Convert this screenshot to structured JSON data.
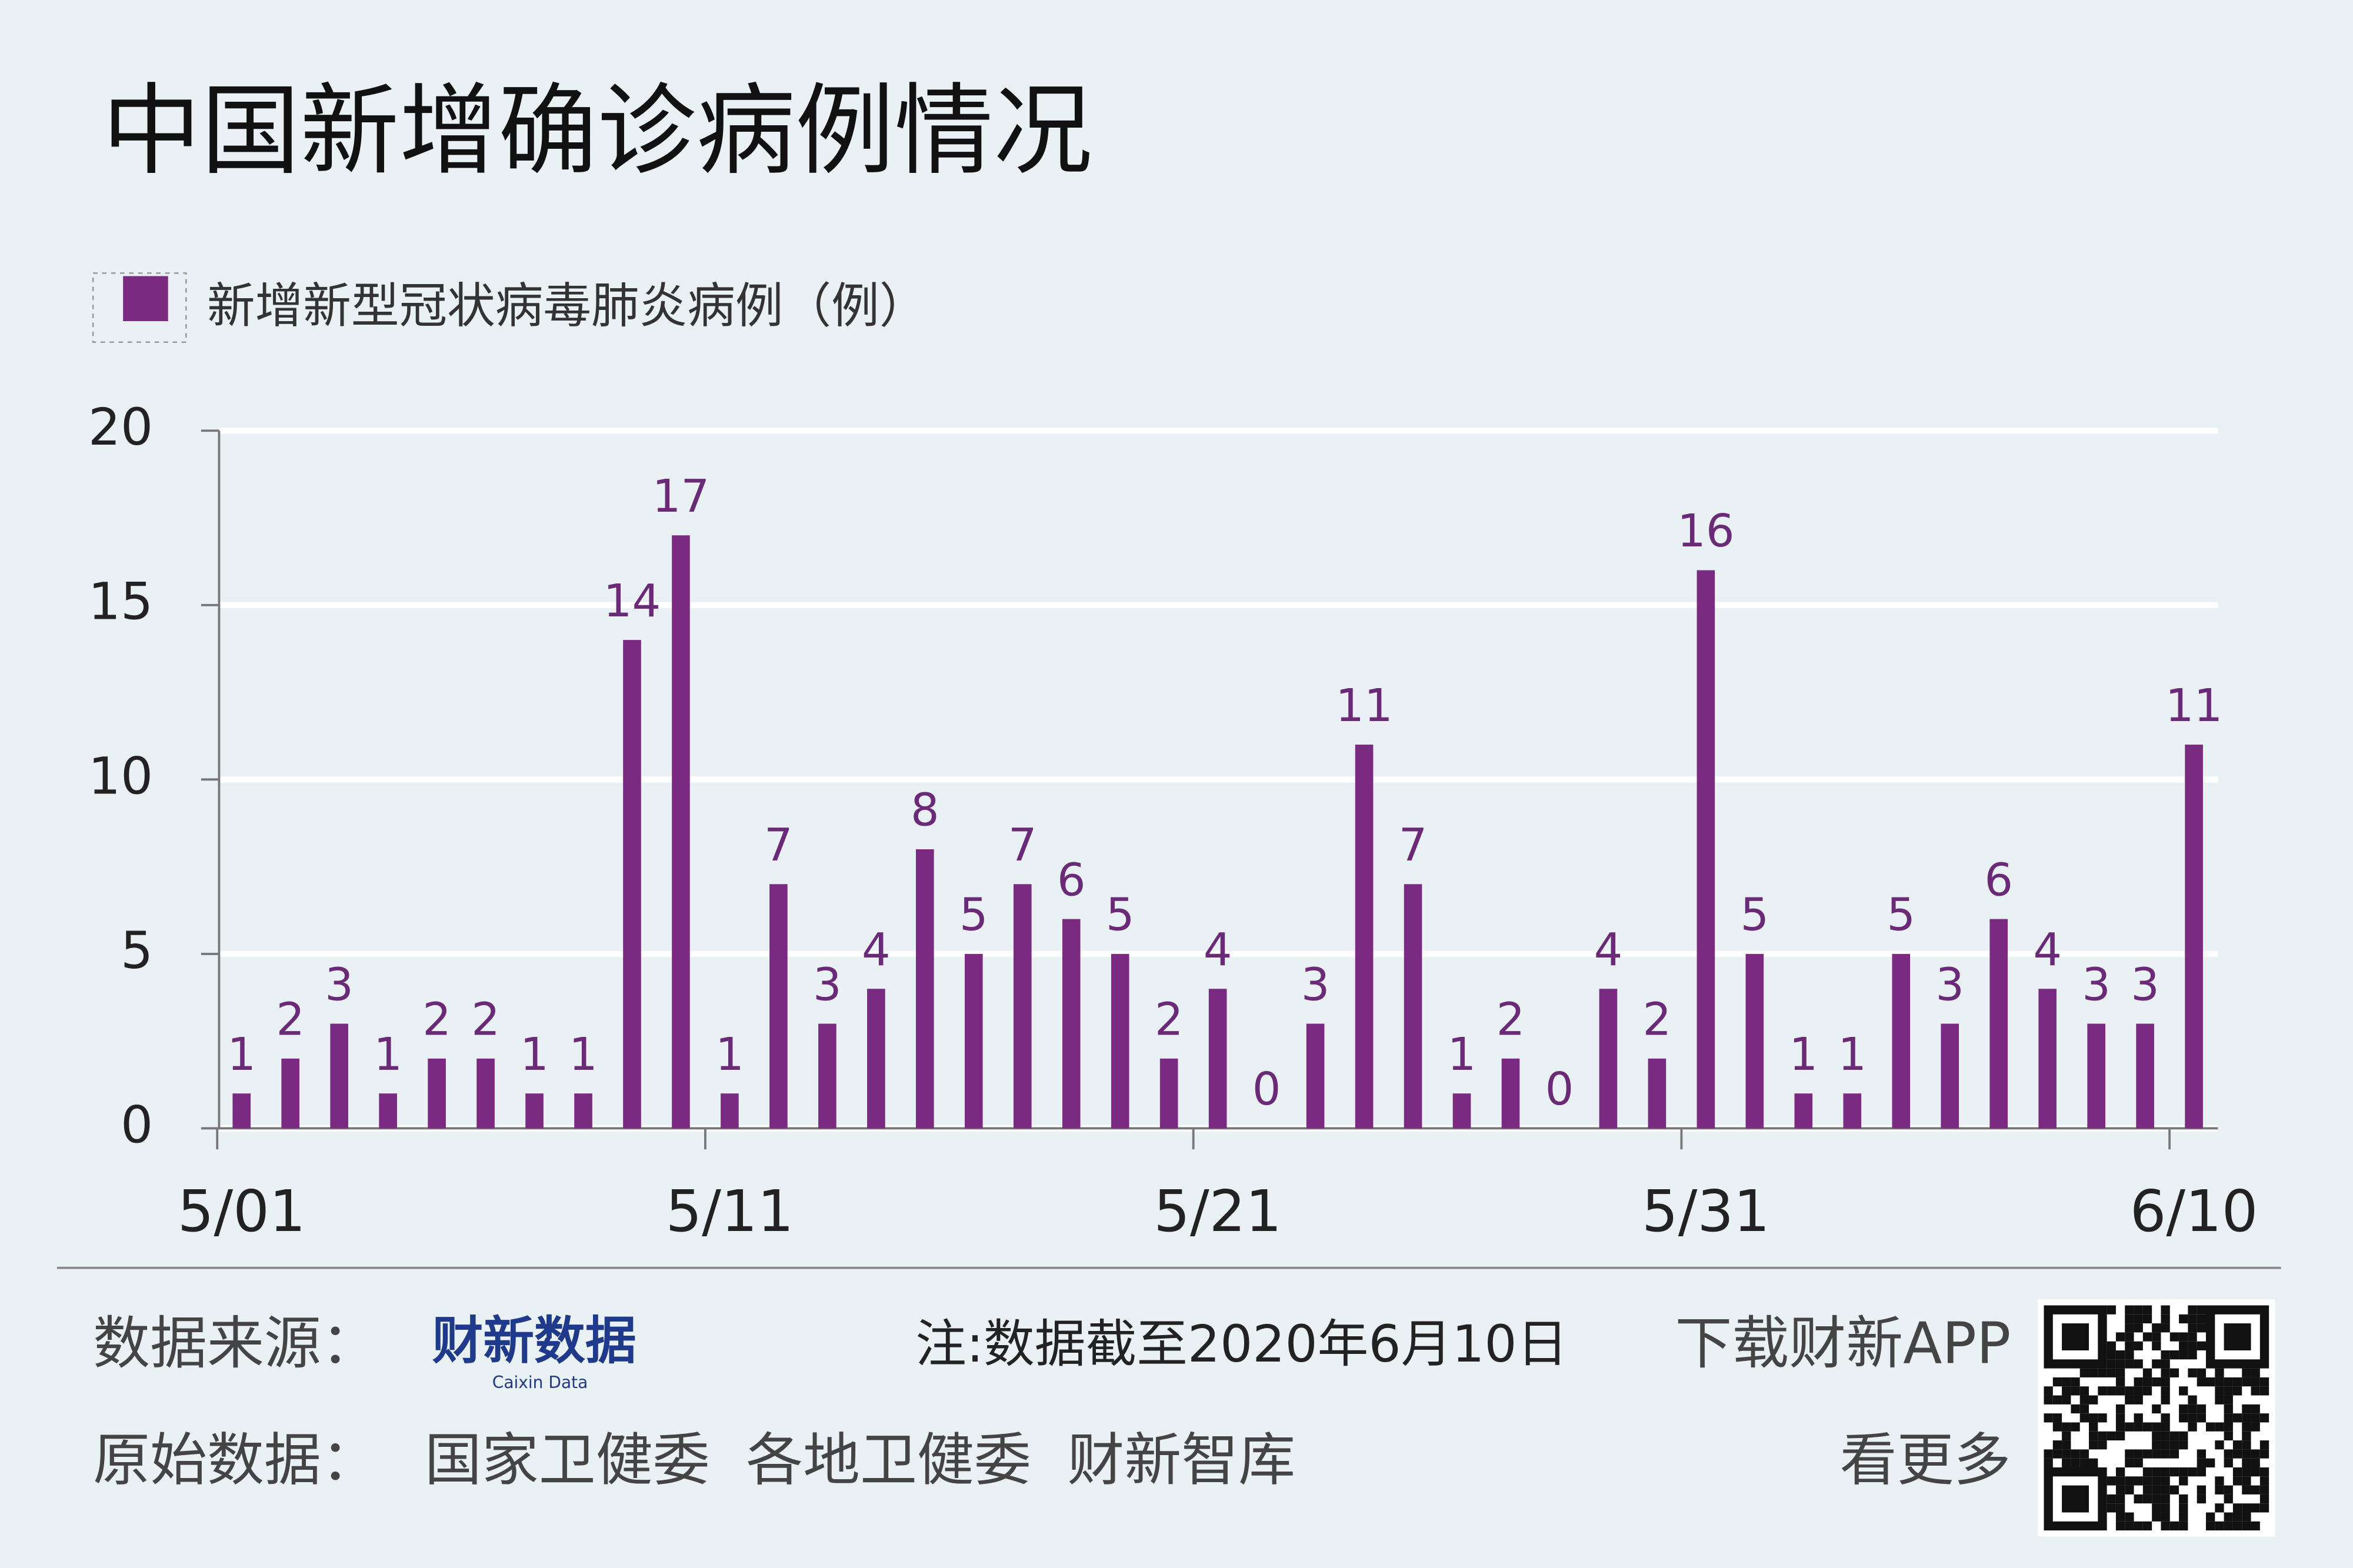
{
  "chart_data": {
    "type": "bar",
    "title": "中国新增确诊病例情况",
    "categories": [
      "5/01",
      null,
      null,
      null,
      null,
      null,
      null,
      null,
      null,
      null,
      "5/11",
      null,
      null,
      null,
      null,
      null,
      null,
      null,
      null,
      null,
      "5/21",
      null,
      null,
      null,
      null,
      null,
      null,
      null,
      null,
      null,
      "5/31",
      null,
      null,
      null,
      null,
      null,
      null,
      null,
      null,
      null,
      "6/10"
    ],
    "series": [
      {
        "name": "新增新型冠状病毒肺炎病例（例）",
        "color": "#7b2a82",
        "values": [
          1,
          2,
          3,
          1,
          2,
          2,
          1,
          1,
          14,
          17,
          1,
          7,
          3,
          4,
          8,
          5,
          7,
          6,
          5,
          2,
          4,
          0,
          3,
          11,
          7,
          1,
          2,
          0,
          4,
          2,
          16,
          5,
          1,
          1,
          5,
          3,
          6,
          4,
          3,
          3,
          11
        ]
      }
    ],
    "ylim": [
      0,
      20
    ],
    "yticks": [
      0,
      5,
      10,
      15,
      20
    ],
    "grid": true,
    "legend": "top-left"
  },
  "footer": {
    "source_label": "数据来源：",
    "source_logo": "财新数据",
    "source_logo_sub": "Caixin Data",
    "note": "注:数据截至2020年6月10日",
    "download": "下载财新APP",
    "original_label": "原始数据：",
    "original_sources": "国家卫健委  各地卫健委  财新智库",
    "more": "看更多"
  }
}
